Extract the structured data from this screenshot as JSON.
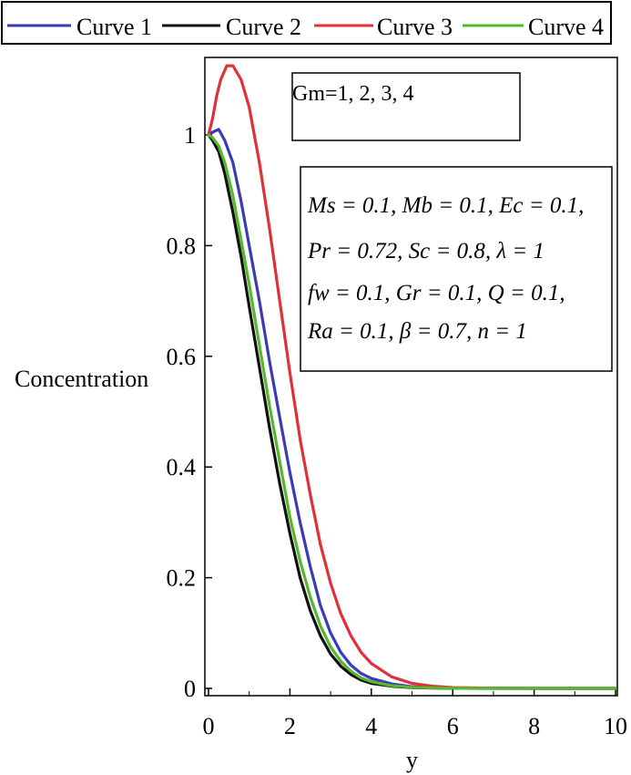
{
  "chart_data": {
    "type": "line",
    "xlabel": "y",
    "ylabel": "Concentration",
    "xlim": [
      0,
      10
    ],
    "ylim": [
      0,
      1.13
    ],
    "xticks": [
      "0",
      "2",
      "4",
      "6",
      "8",
      "10"
    ],
    "yticks": [
      "0",
      "0.2",
      "0.4",
      "0.6",
      "0.8",
      "1"
    ],
    "legend_position": "top",
    "annotation_gm": "Gm=1, 2, 3, 4",
    "param_lines": [
      "Ms = 0.1, Mb = 0.1, Ec = 0.1,",
      "Pr = 0.72,  Sc = 0.8,  λ = 1",
      "fw = 0.1, Gr = 0.1, Q = 0.1,",
      "Ra = 0.1, β = 0.7, n = 1"
    ],
    "series": [
      {
        "name": "Curve 1",
        "color": "#3b3bb8",
        "x": [
          0,
          0.1,
          0.25,
          0.4,
          0.6,
          0.8,
          1.0,
          1.25,
          1.5,
          1.75,
          2.0,
          2.25,
          2.5,
          2.75,
          3.0,
          3.25,
          3.5,
          3.75,
          4.0,
          4.5,
          5.0,
          5.5,
          6.0,
          7.0,
          8.0,
          10.0
        ],
        "y": [
          1.0,
          1.005,
          1.01,
          0.99,
          0.95,
          0.88,
          0.8,
          0.7,
          0.59,
          0.49,
          0.39,
          0.3,
          0.22,
          0.15,
          0.1,
          0.065,
          0.042,
          0.027,
          0.018,
          0.008,
          0.003,
          0.0015,
          0.0007,
          0.0002,
          0.0,
          0.0
        ]
      },
      {
        "name": "Curve 2",
        "color": "#111111",
        "x": [
          0,
          0.1,
          0.25,
          0.4,
          0.6,
          0.8,
          1.0,
          1.25,
          1.5,
          1.75,
          2.0,
          2.25,
          2.5,
          2.75,
          3.0,
          3.25,
          3.5,
          3.75,
          4.0,
          4.5,
          5.0,
          5.5,
          6.0,
          7.0,
          8.0,
          10.0
        ],
        "y": [
          1.0,
          0.99,
          0.97,
          0.93,
          0.86,
          0.78,
          0.69,
          0.58,
          0.47,
          0.37,
          0.28,
          0.2,
          0.14,
          0.095,
          0.062,
          0.04,
          0.025,
          0.015,
          0.009,
          0.004,
          0.0015,
          0.0006,
          0.0002,
          0.0,
          0.0,
          0.0
        ]
      },
      {
        "name": "Curve 3",
        "color": "#e0303a",
        "x": [
          0,
          0.1,
          0.2,
          0.3,
          0.45,
          0.6,
          0.8,
          1.0,
          1.25,
          1.5,
          1.75,
          2.0,
          2.25,
          2.5,
          2.75,
          3.0,
          3.25,
          3.5,
          3.75,
          4.0,
          4.5,
          5.0,
          5.5,
          6.0,
          7.0,
          8.0,
          10.0
        ],
        "y": [
          1.0,
          1.03,
          1.07,
          1.1,
          1.125,
          1.125,
          1.1,
          1.05,
          0.95,
          0.83,
          0.7,
          0.57,
          0.45,
          0.35,
          0.26,
          0.19,
          0.135,
          0.095,
          0.065,
          0.045,
          0.021,
          0.009,
          0.004,
          0.0015,
          0.0003,
          0.0,
          0.0
        ]
      },
      {
        "name": "Curve 4",
        "color": "#55b82e",
        "x": [
          0,
          0.1,
          0.25,
          0.4,
          0.6,
          0.8,
          1.0,
          1.25,
          1.5,
          1.75,
          2.0,
          2.25,
          2.5,
          2.75,
          3.0,
          3.25,
          3.5,
          3.75,
          4.0,
          4.5,
          5.0,
          5.5,
          6.0,
          7.0,
          8.0,
          10.0
        ],
        "y": [
          1.0,
          0.995,
          0.98,
          0.95,
          0.89,
          0.81,
          0.73,
          0.62,
          0.51,
          0.41,
          0.31,
          0.23,
          0.165,
          0.113,
          0.075,
          0.049,
          0.031,
          0.019,
          0.012,
          0.005,
          0.002,
          0.0008,
          0.0003,
          0.0,
          0.0,
          0.0
        ]
      }
    ]
  }
}
